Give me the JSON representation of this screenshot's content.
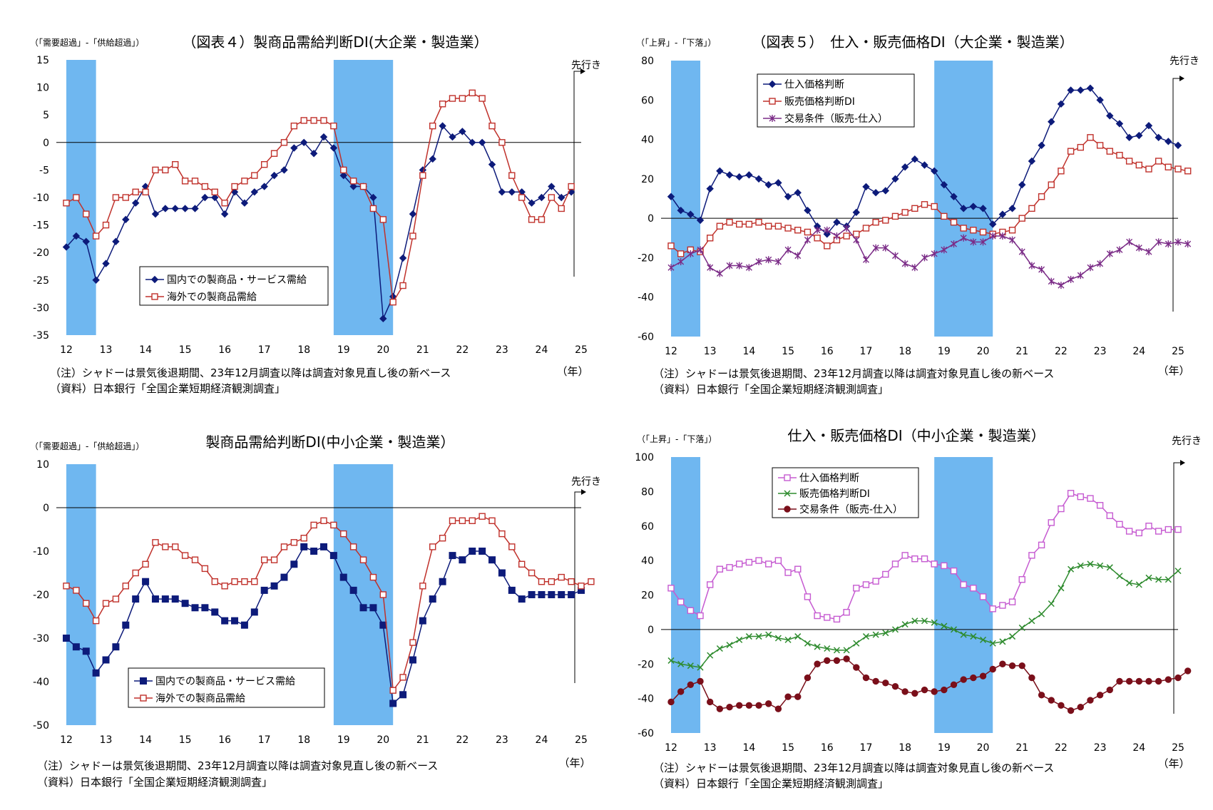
{
  "colors": {
    "shadow": "#6FB7F0",
    "navy": "#0D1B7A",
    "red": "#C0312B",
    "purple": "#7B2C87",
    "magenta": "#C65BD1",
    "green": "#2E8B2E",
    "maroon": "#7A0F1A"
  },
  "chart_data": [
    {
      "type": "line",
      "title": "（図表４）製商品需給判断DI(大企業・製造業）",
      "ylabel": "（「需要超過」-「供給超過」）",
      "xlabel": "（年）",
      "forecast_label": "先行き",
      "note": "（注）シャドーは景気後退期間、23年12月調査以降は調査対象見直し後の新ベース",
      "source": "（資料）日本銀行「全国企業短期経済観測調査」",
      "ylim": [
        -35,
        15
      ],
      "yticks": [
        15,
        10,
        5,
        0,
        -5,
        -10,
        -15,
        -20,
        -25,
        -30,
        -35
      ],
      "x_start": 2012.0,
      "x_step": 0.25,
      "x_year_labels": [
        "12",
        "13",
        "14",
        "15",
        "16",
        "17",
        "18",
        "19",
        "20",
        "21",
        "22",
        "23",
        "24",
        "25"
      ],
      "shading": [
        [
          2012.0,
          2012.75
        ],
        [
          2018.75,
          2020.25
        ]
      ],
      "series": [
        {
          "name": "国内での製商品・サービス需給",
          "marker": "diamond",
          "color_key": "navy",
          "values": [
            -19,
            -17,
            -18,
            -25,
            -22,
            -18,
            -14,
            -11,
            -8,
            -13,
            -12,
            -12,
            -12,
            -12,
            -10,
            -10,
            -13,
            -9,
            -11,
            -9,
            -8,
            -6,
            -5,
            -1,
            0,
            -2,
            1,
            -1,
            -6,
            -8,
            -8,
            -10,
            -32,
            -28,
            -21,
            -13,
            -5,
            -3,
            3,
            1,
            2,
            0,
            0,
            -4,
            -9,
            -9,
            -9,
            -11,
            -10,
            -8,
            -10,
            -9
          ]
        },
        {
          "name": "海外での製商品需給",
          "marker": "square-open",
          "color_key": "red",
          "values": [
            -11,
            -10,
            -13,
            -17,
            -15,
            -10,
            -10,
            -9,
            -9,
            -5,
            -5,
            -4,
            -7,
            -7,
            -8,
            -9,
            -11,
            -8,
            -7,
            -6,
            -4,
            -2,
            0,
            3,
            4,
            4,
            4,
            3,
            -5,
            -7,
            -8,
            -12,
            -14,
            -29,
            -26,
            -17,
            -6,
            3,
            7,
            8,
            8,
            9,
            8,
            3,
            0,
            -6,
            -10,
            -14,
            -14,
            -10,
            -12,
            -8
          ]
        }
      ]
    },
    {
      "type": "line",
      "title": "（図表５）　仕入・販売価格DI（大企業・製造業）",
      "ylabel": "（「上昇」-「下落」）",
      "xlabel": "（年）",
      "forecast_label": "先行き",
      "note": "（注）シャドーは景気後退期間、23年12月調査以降は調査対象見直し後の新ベース",
      "source": "（資料）日本銀行「全国企業短期経済観測調査」",
      "ylim": [
        -60,
        80
      ],
      "yticks": [
        80,
        60,
        40,
        20,
        0,
        -20,
        -40,
        -60
      ],
      "x_start": 2012.0,
      "x_step": 0.25,
      "x_year_labels": [
        "12",
        "13",
        "14",
        "15",
        "16",
        "17",
        "18",
        "19",
        "20",
        "21",
        "22",
        "23",
        "24",
        "25"
      ],
      "shading": [
        [
          2012.0,
          2012.75
        ],
        [
          2018.75,
          2020.25
        ]
      ],
      "series": [
        {
          "name": "仕入価格判断",
          "marker": "diamond",
          "color_key": "navy",
          "values": [
            11,
            4,
            2,
            -1,
            15,
            24,
            22,
            21,
            22,
            20,
            17,
            18,
            11,
            13,
            4,
            -4,
            -8,
            -2,
            -4,
            3,
            16,
            13,
            14,
            20,
            26,
            30,
            27,
            24,
            17,
            11,
            5,
            6,
            5,
            -3,
            2,
            5,
            17,
            29,
            37,
            49,
            58,
            65,
            65,
            66,
            60,
            52,
            48,
            41,
            42,
            47,
            41,
            39,
            37
          ]
        },
        {
          "name": "販売価格判断DI",
          "marker": "square-open",
          "color_key": "red",
          "values": [
            -14,
            -18,
            -16,
            -17,
            -10,
            -4,
            -2,
            -3,
            -3,
            -2,
            -4,
            -4,
            -5,
            -6,
            -7,
            -10,
            -14,
            -11,
            -9,
            -8,
            -5,
            -2,
            -1,
            1,
            3,
            5,
            7,
            6,
            1,
            -2,
            -5,
            -6,
            -7,
            -8,
            -7,
            -6,
            0,
            5,
            11,
            17,
            24,
            34,
            36,
            41,
            37,
            34,
            32,
            29,
            27,
            25,
            29,
            26,
            25,
            24
          ]
        },
        {
          "name": "交易条件（販売-仕入）",
          "marker": "asterisk",
          "color_key": "purple",
          "values": [
            -25,
            -22,
            -18,
            -16,
            -25,
            -28,
            -24,
            -24,
            -25,
            -22,
            -21,
            -22,
            -16,
            -19,
            -11,
            -6,
            -6,
            -9,
            -5,
            -11,
            -21,
            -15,
            -15,
            -19,
            -23,
            -25,
            -20,
            -18,
            -16,
            -13,
            -10,
            -12,
            -12,
            -9,
            -9,
            -11,
            -17,
            -24,
            -26,
            -32,
            -34,
            -31,
            -29,
            -25,
            -23,
            -18,
            -16,
            -12,
            -15,
            -17,
            -12,
            -13,
            -12,
            -13
          ]
        }
      ]
    },
    {
      "type": "line",
      "title": "製商品需給判断DI(中小企業・製造業）",
      "ylabel": "（「需要超過」-「供給超過」）",
      "xlabel": "（年）",
      "forecast_label": "先行き",
      "note": "（注）シャドーは景気後退期間、23年12月調査以降は調査対象見直し後の新ベース",
      "source": "（資料）日本銀行「全国企業短期経済観測調査」",
      "ylim": [
        -50,
        10
      ],
      "yticks": [
        10,
        0,
        -10,
        -20,
        -30,
        -40,
        -50
      ],
      "x_start": 2012.0,
      "x_step": 0.25,
      "x_year_labels": [
        "12",
        "13",
        "14",
        "15",
        "16",
        "17",
        "18",
        "19",
        "20",
        "21",
        "22",
        "23",
        "24",
        "25"
      ],
      "shading": [
        [
          2012.0,
          2012.75
        ],
        [
          2018.75,
          2020.25
        ]
      ],
      "series": [
        {
          "name": "国内での製商品・サービス需給",
          "marker": "square-filled",
          "color_key": "navy",
          "values": [
            -30,
            -32,
            -33,
            -38,
            -35,
            -32,
            -27,
            -21,
            -17,
            -21,
            -21,
            -21,
            -22,
            -23,
            -23,
            -24,
            -26,
            -26,
            -27,
            -24,
            -19,
            -18,
            -16,
            -13,
            -9,
            -10,
            -9,
            -11,
            -16,
            -19,
            -23,
            -23,
            -27,
            -45,
            -43,
            -35,
            -26,
            -21,
            -17,
            -11,
            -12,
            -10,
            -10,
            -12,
            -15,
            -19,
            -21,
            -20,
            -20,
            -20,
            -20,
            -20,
            -19
          ]
        },
        {
          "name": "海外での製商品需給",
          "marker": "square-open",
          "color_key": "red",
          "values": [
            -18,
            -19,
            -22,
            -26,
            -22,
            -21,
            -18,
            -15,
            -13,
            -8,
            -9,
            -9,
            -11,
            -12,
            -14,
            -17,
            -18,
            -17,
            -17,
            -17,
            -12,
            -12,
            -9,
            -8,
            -7,
            -4,
            -3,
            -4,
            -6,
            -9,
            -12,
            -16,
            -20,
            -42,
            -39,
            -31,
            -18,
            -9,
            -7,
            -3,
            -3,
            -3,
            -2,
            -3,
            -6,
            -9,
            -13,
            -15,
            -17,
            -17,
            -16,
            -17,
            -18,
            -17
          ]
        }
      ]
    },
    {
      "type": "line",
      "title": "仕入・販売価格DI（中小企業・製造業）",
      "ylabel": "（「上昇」-「下落」）",
      "xlabel": "（年）",
      "forecast_label": "先行き",
      "note": "（注）シャドーは景気後退期間、23年12月調査以降は調査対象見直し後の新ベース",
      "source": "（資料）日本銀行「全国企業短期経済観測調査」",
      "ylim": [
        -60,
        100
      ],
      "yticks": [
        100,
        80,
        60,
        40,
        20,
        0,
        -20,
        -40,
        -60
      ],
      "x_start": 2012.0,
      "x_step": 0.25,
      "x_year_labels": [
        "12",
        "13",
        "14",
        "15",
        "16",
        "17",
        "18",
        "19",
        "20",
        "21",
        "22",
        "23",
        "24",
        "25"
      ],
      "shading": [
        [
          2012.0,
          2012.75
        ],
        [
          2018.75,
          2020.25
        ]
      ],
      "series": [
        {
          "name": "仕入価格判断",
          "marker": "square-open",
          "color_key": "magenta",
          "values": [
            24,
            16,
            11,
            8,
            26,
            35,
            36,
            38,
            39,
            40,
            38,
            40,
            33,
            35,
            19,
            8,
            7,
            6,
            10,
            24,
            26,
            28,
            32,
            38,
            43,
            41,
            41,
            38,
            37,
            34,
            26,
            24,
            19,
            12,
            14,
            16,
            29,
            43,
            49,
            62,
            70,
            79,
            77,
            76,
            72,
            66,
            61,
            57,
            56,
            60,
            57,
            58,
            58
          ]
        },
        {
          "name": "販売価格判断DI",
          "marker": "x",
          "color_key": "green",
          "values": [
            -18,
            -20,
            -21,
            -22,
            -15,
            -11,
            -9,
            -6,
            -4,
            -4,
            -3,
            -5,
            -6,
            -4,
            -8,
            -10,
            -11,
            -12,
            -12,
            -8,
            -4,
            -3,
            -2,
            0,
            3,
            5,
            5,
            4,
            2,
            0,
            -3,
            -4,
            -6,
            -8,
            -7,
            -4,
            1,
            5,
            9,
            15,
            24,
            35,
            37,
            38,
            37,
            36,
            31,
            27,
            26,
            30,
            29,
            29,
            34
          ]
        },
        {
          "name": "交易条件（販売-仕入）",
          "marker": "circle-filled",
          "color_key": "maroon",
          "values": [
            -42,
            -36,
            -32,
            -30,
            -42,
            -46,
            -45,
            -44,
            -44,
            -44,
            -43,
            -46,
            -39,
            -39,
            -28,
            -20,
            -18,
            -18,
            -17,
            -22,
            -28,
            -30,
            -31,
            -33,
            -36,
            -37,
            -35,
            -36,
            -35,
            -32,
            -29,
            -28,
            -27,
            -23,
            -20,
            -21,
            -21,
            -28,
            -38,
            -41,
            -44,
            -47,
            -45,
            -41,
            -38,
            -35,
            -30,
            -30,
            -30,
            -30,
            -30,
            -29,
            -28,
            -24
          ]
        }
      ]
    }
  ]
}
